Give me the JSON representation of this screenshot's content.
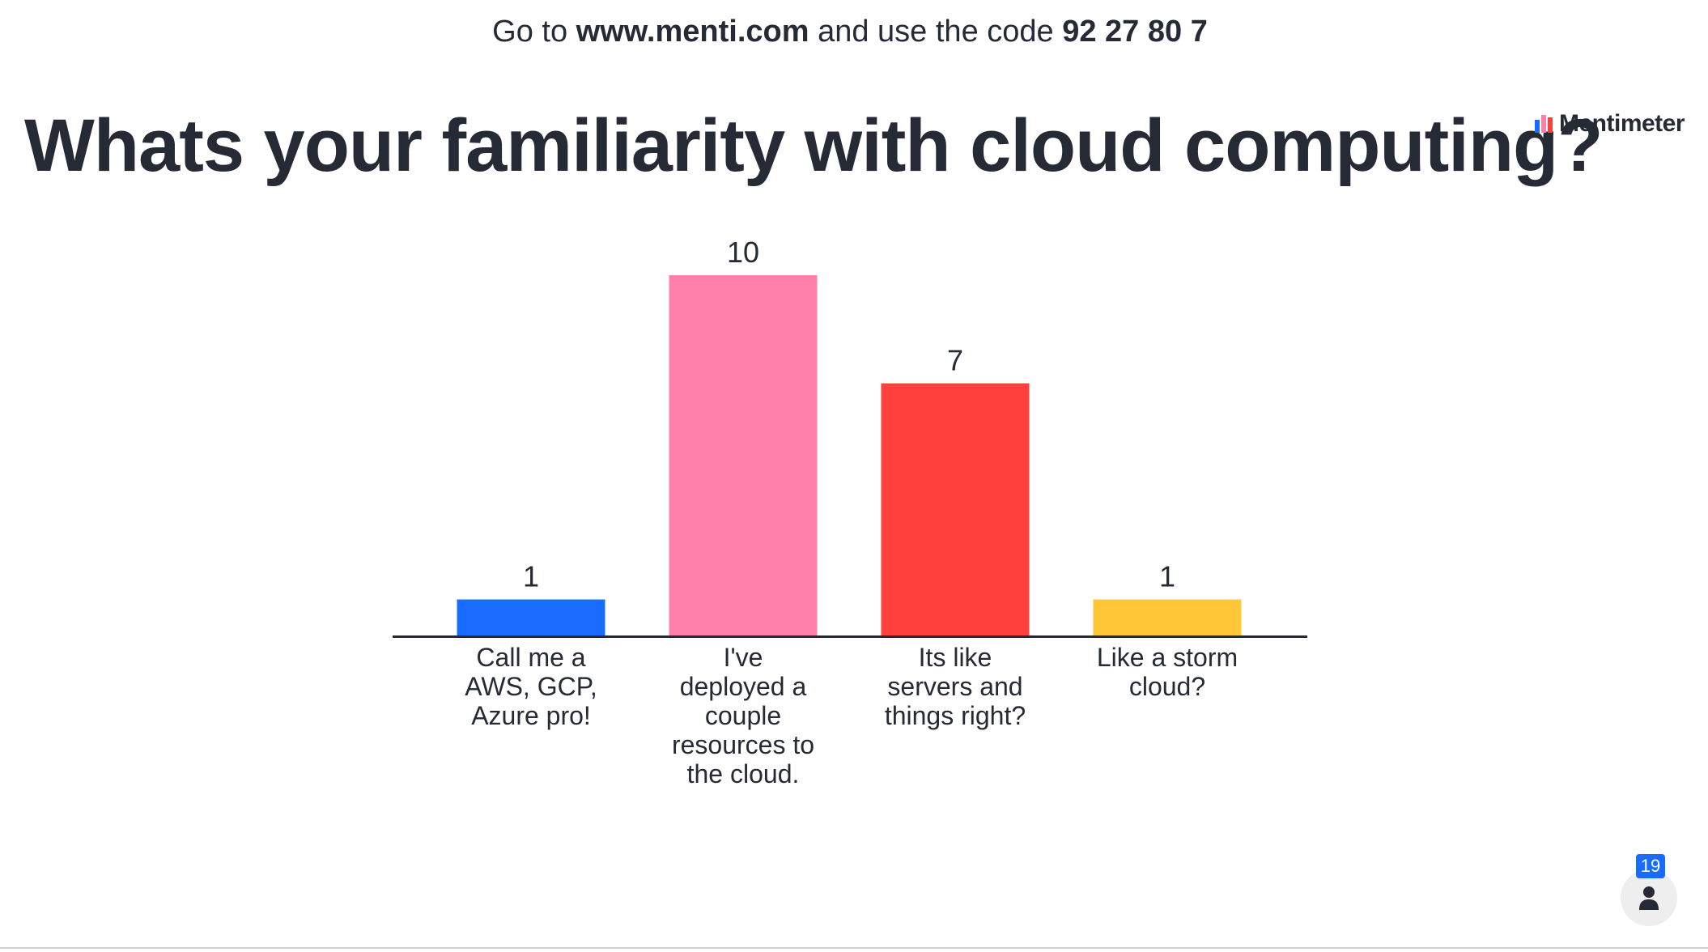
{
  "header": {
    "join_prefix": "Go to ",
    "join_url": "www.menti.com",
    "join_middle": " and use the code ",
    "join_code": "92 27 80 7"
  },
  "brand": {
    "name": "Mentimeter",
    "icon": "mentimeter-logo-icon"
  },
  "participants": {
    "count": "19",
    "icon": "person-icon"
  },
  "chart_data": {
    "type": "bar",
    "title": "Whats your familiarity with cloud computing?",
    "categories": [
      "Call me a AWS, GCP, Azure pro!",
      "I've deployed a couple resources to the cloud.",
      "Its like servers and things right?",
      "Like a storm cloud?"
    ],
    "category_lines": [
      [
        "Call me a",
        "AWS, GCP,",
        "Azure pro!"
      ],
      [
        "I've",
        "deployed a",
        "couple",
        "resources to",
        "the cloud."
      ],
      [
        "Its like",
        "servers and",
        "things right?"
      ],
      [
        "Like a storm",
        "cloud?"
      ]
    ],
    "values": [
      1,
      10,
      7,
      1
    ],
    "colors": [
      "#196cff",
      "#ff80ab",
      "#ff403d",
      "#ffc638"
    ],
    "ylim": [
      0,
      10
    ],
    "grid": false,
    "legend": "none",
    "xlabel": "",
    "ylabel": ""
  }
}
